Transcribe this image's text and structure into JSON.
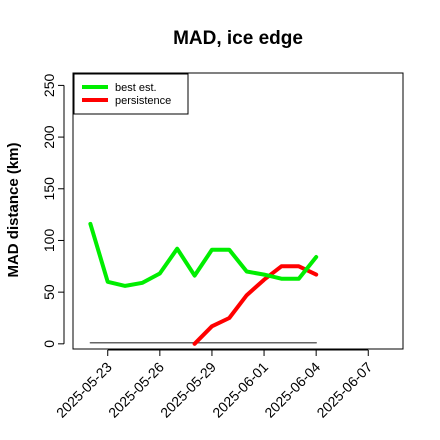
{
  "chart_data": {
    "type": "line",
    "title": "MAD, ice edge",
    "xlabel": "",
    "ylabel": "MAD distance (km)",
    "x_ticks": [
      "2025-05-23",
      "2025-05-26",
      "2025-05-29",
      "2025-06-01",
      "2025-06-04",
      "2025-06-07"
    ],
    "y_ticks": [
      "0",
      "50",
      "100",
      "150",
      "200",
      "250"
    ],
    "xlim": [
      "2025-05-21",
      "2025-06-09"
    ],
    "ylim": [
      -5,
      262
    ],
    "legend_position": "top-left",
    "series": [
      {
        "name": "best est.",
        "color": "#00ee00",
        "x": [
          "2025-05-22",
          "2025-05-23",
          "2025-05-24",
          "2025-05-25",
          "2025-05-26",
          "2025-05-27",
          "2025-05-28",
          "2025-05-29",
          "2025-05-30",
          "2025-05-31",
          "2025-06-01",
          "2025-06-02",
          "2025-06-03",
          "2025-06-04"
        ],
        "y": [
          116,
          60,
          56,
          59,
          68,
          92,
          66,
          91,
          91,
          70,
          67,
          63,
          63,
          84
        ]
      },
      {
        "name": "persistence",
        "color": "#ff0000",
        "x": [
          "2025-05-28",
          "2025-05-29",
          "2025-05-30",
          "2025-05-31",
          "2025-06-01",
          "2025-06-02",
          "2025-06-03",
          "2025-06-04"
        ],
        "y": [
          0,
          17,
          25,
          47,
          62,
          75,
          75,
          67
        ]
      },
      {
        "name": "",
        "color": "#666666",
        "x": [
          "2025-05-22",
          "2025-06-04"
        ],
        "y": [
          1,
          1
        ]
      }
    ]
  }
}
